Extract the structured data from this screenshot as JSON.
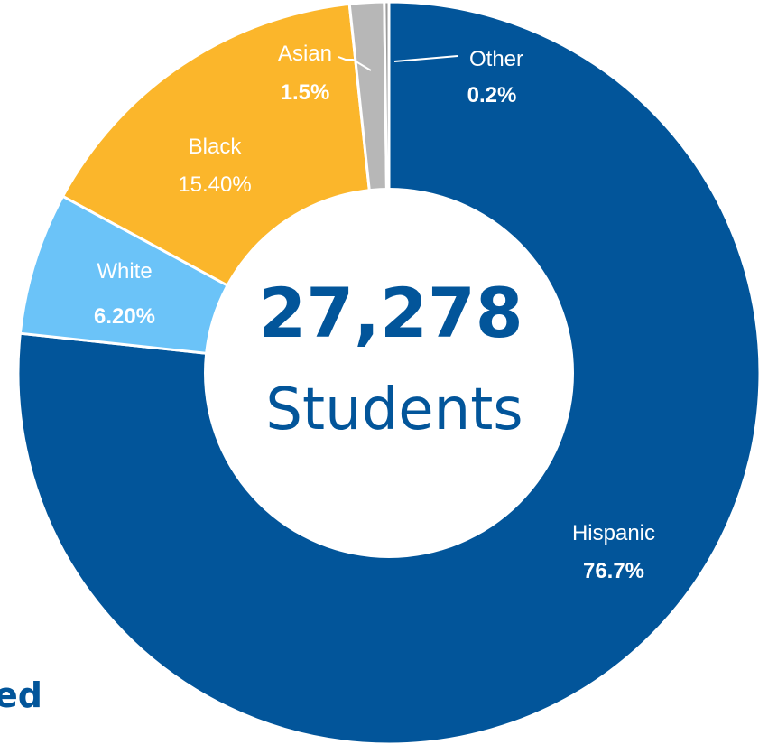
{
  "chart_data": {
    "type": "pie",
    "variant": "donut",
    "categories": [
      "Hispanic",
      "White",
      "Black",
      "Asian",
      "Other"
    ],
    "values": [
      76.7,
      6.2,
      15.4,
      1.5,
      0.2
    ],
    "value_labels": [
      "76.7%",
      "6.20%",
      "15.40%",
      "1.5%",
      "0.2%"
    ],
    "colors": [
      "#02559a",
      "#6bc3f8",
      "#fbb62b",
      "#b7b7b7",
      "#9a9a9a"
    ],
    "label_colors": [
      "#ffffff",
      "#ffffff",
      "#ffffff",
      "#ffffff",
      "#ffffff"
    ],
    "value_bold": [
      true,
      true,
      false,
      true,
      true
    ],
    "label_placement": [
      "inside",
      "inside",
      "inside",
      "leader-line",
      "leader-line"
    ],
    "center": {
      "number": "27,278",
      "caption": "Students",
      "color": "#02559a"
    },
    "cut_off_text": "ed",
    "legend": "none"
  }
}
